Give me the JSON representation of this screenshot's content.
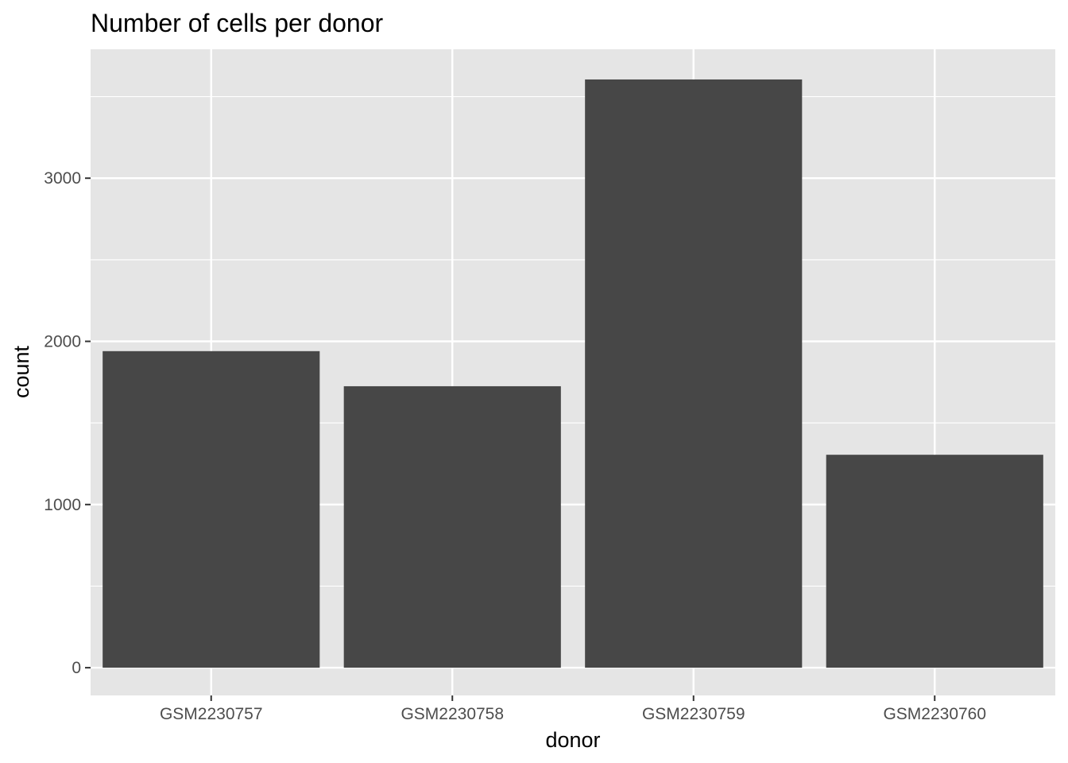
{
  "chart_data": {
    "type": "bar",
    "title": "Number of cells per donor",
    "xlabel": "donor",
    "ylabel": "count",
    "categories": [
      "GSM2230757",
      "GSM2230758",
      "GSM2230759",
      "GSM2230760"
    ],
    "values": [
      1940,
      1725,
      3605,
      1305
    ],
    "ylim": [
      -170,
      3790
    ],
    "yticks": [
      0,
      1000,
      2000,
      3000
    ],
    "ytick_labels": [
      "0",
      "1000",
      "2000",
      "3000"
    ],
    "grid": true,
    "legend": "none",
    "colors": {
      "bar": "#474747",
      "panel": "#e5e5e5",
      "grid": "#ffffff",
      "tick_text": "#4d4d4d",
      "tick_mark": "#333333"
    }
  }
}
